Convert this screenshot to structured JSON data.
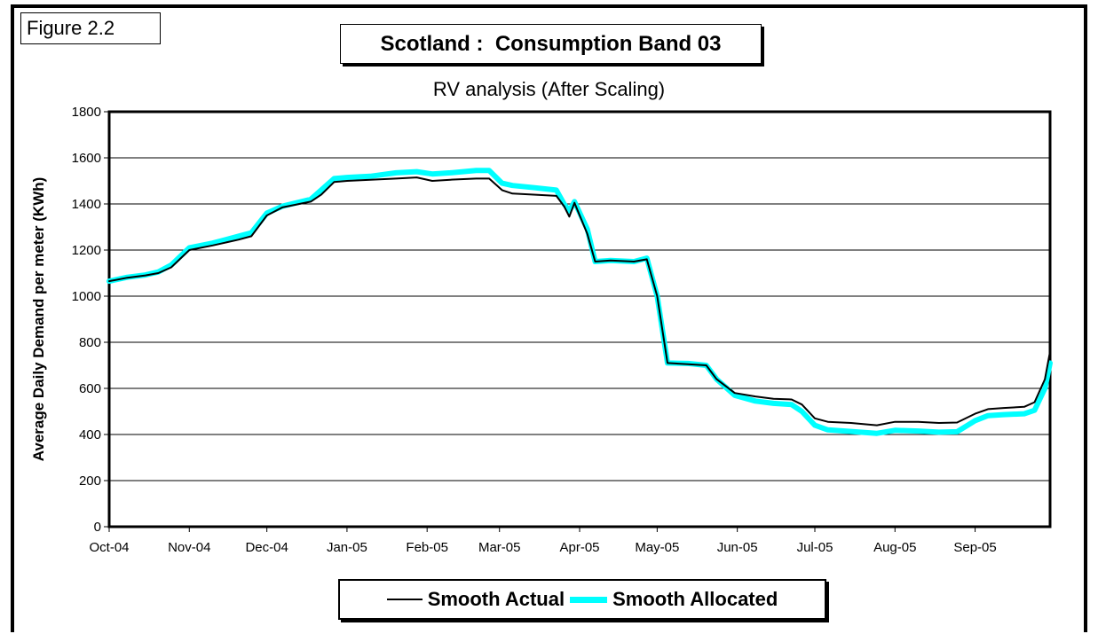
{
  "figure_label": "Figure 2.2",
  "title": "Scotland :  Consumption Band 03",
  "subtitle": "RV analysis (After Scaling)",
  "chart_data": {
    "type": "line",
    "ylabel": "Average Daily Demand per meter (KWh)",
    "xlabel": "",
    "ylim": [
      0,
      1800
    ],
    "yticks": [
      0,
      200,
      400,
      600,
      800,
      1000,
      1200,
      1400,
      1600,
      1800
    ],
    "xlim": [
      "2004-10-01",
      "2005-09-30"
    ],
    "x_tick_labels": [
      "Oct-04",
      "Nov-04",
      "Dec-04",
      "Jan-05",
      "Feb-05",
      "Mar-05",
      "Apr-05",
      "May-05",
      "Jun-05",
      "Jul-05",
      "Aug-05",
      "Sep-05"
    ],
    "x_tick_dates": [
      "2004-10-01",
      "2004-11-01",
      "2004-12-01",
      "2005-01-01",
      "2005-02-01",
      "2005-03-01",
      "2005-04-01",
      "2005-05-01",
      "2005-06-01",
      "2005-07-01",
      "2005-08-01",
      "2005-09-01"
    ],
    "grid": "horizontal",
    "legend_position": "bottom",
    "series": [
      {
        "name": "Smooth Actual",
        "color": "#000000",
        "points": [
          [
            "2004-10-01",
            1065
          ],
          [
            "2004-10-08",
            1080
          ],
          [
            "2004-10-15",
            1090
          ],
          [
            "2004-10-20",
            1100
          ],
          [
            "2004-10-25",
            1125
          ],
          [
            "2004-11-01",
            1200
          ],
          [
            "2004-11-10",
            1220
          ],
          [
            "2004-11-20",
            1245
          ],
          [
            "2004-11-25",
            1260
          ],
          [
            "2004-12-01",
            1350
          ],
          [
            "2004-12-07",
            1385
          ],
          [
            "2004-12-18",
            1410
          ],
          [
            "2004-12-22",
            1440
          ],
          [
            "2004-12-27",
            1495
          ],
          [
            "2005-01-01",
            1500
          ],
          [
            "2005-01-10",
            1505
          ],
          [
            "2005-01-20",
            1510
          ],
          [
            "2005-01-28",
            1515
          ],
          [
            "2005-02-03",
            1500
          ],
          [
            "2005-02-10",
            1505
          ],
          [
            "2005-02-20",
            1510
          ],
          [
            "2005-02-25",
            1510
          ],
          [
            "2005-03-02",
            1460
          ],
          [
            "2005-03-06",
            1445
          ],
          [
            "2005-03-15",
            1440
          ],
          [
            "2005-03-23",
            1435
          ],
          [
            "2005-03-26",
            1390
          ],
          [
            "2005-03-28",
            1345
          ],
          [
            "2005-03-30",
            1405
          ],
          [
            "2005-04-04",
            1270
          ],
          [
            "2005-04-07",
            1150
          ],
          [
            "2005-04-13",
            1155
          ],
          [
            "2005-04-22",
            1150
          ],
          [
            "2005-04-27",
            1160
          ],
          [
            "2005-05-01",
            1000
          ],
          [
            "2005-05-05",
            710
          ],
          [
            "2005-05-13",
            705
          ],
          [
            "2005-05-20",
            700
          ],
          [
            "2005-05-24",
            640
          ],
          [
            "2005-05-31",
            580
          ],
          [
            "2005-06-08",
            565
          ],
          [
            "2005-06-15",
            555
          ],
          [
            "2005-06-22",
            552
          ],
          [
            "2005-06-26",
            530
          ],
          [
            "2005-07-01",
            470
          ],
          [
            "2005-07-06",
            455
          ],
          [
            "2005-07-15",
            450
          ],
          [
            "2005-07-25",
            440
          ],
          [
            "2005-08-01",
            455
          ],
          [
            "2005-08-10",
            455
          ],
          [
            "2005-08-18",
            450
          ],
          [
            "2005-08-25",
            452
          ],
          [
            "2005-09-01",
            490
          ],
          [
            "2005-09-06",
            510
          ],
          [
            "2005-09-12",
            515
          ],
          [
            "2005-09-20",
            520
          ],
          [
            "2005-09-24",
            540
          ],
          [
            "2005-09-28",
            640
          ],
          [
            "2005-09-30",
            760
          ]
        ]
      },
      {
        "name": "Smooth Allocated",
        "color": "#00ffff",
        "points": [
          [
            "2004-10-01",
            1065
          ],
          [
            "2004-10-08",
            1082
          ],
          [
            "2004-10-15",
            1092
          ],
          [
            "2004-10-20",
            1105
          ],
          [
            "2004-10-25",
            1135
          ],
          [
            "2004-11-01",
            1210
          ],
          [
            "2004-11-10",
            1230
          ],
          [
            "2004-11-20",
            1260
          ],
          [
            "2004-11-25",
            1275
          ],
          [
            "2004-12-01",
            1360
          ],
          [
            "2004-12-07",
            1390
          ],
          [
            "2004-12-18",
            1420
          ],
          [
            "2004-12-22",
            1460
          ],
          [
            "2004-12-27",
            1510
          ],
          [
            "2005-01-01",
            1515
          ],
          [
            "2005-01-10",
            1520
          ],
          [
            "2005-01-20",
            1535
          ],
          [
            "2005-01-28",
            1540
          ],
          [
            "2005-02-03",
            1530
          ],
          [
            "2005-02-10",
            1535
          ],
          [
            "2005-02-20",
            1545
          ],
          [
            "2005-02-25",
            1545
          ],
          [
            "2005-03-02",
            1490
          ],
          [
            "2005-03-06",
            1480
          ],
          [
            "2005-03-15",
            1470
          ],
          [
            "2005-03-23",
            1460
          ],
          [
            "2005-03-26",
            1400
          ],
          [
            "2005-03-28",
            1370
          ],
          [
            "2005-03-30",
            1410
          ],
          [
            "2005-04-04",
            1290
          ],
          [
            "2005-04-07",
            1150
          ],
          [
            "2005-04-13",
            1155
          ],
          [
            "2005-04-22",
            1150
          ],
          [
            "2005-04-27",
            1165
          ],
          [
            "2005-05-01",
            1000
          ],
          [
            "2005-05-05",
            710
          ],
          [
            "2005-05-13",
            708
          ],
          [
            "2005-05-20",
            700
          ],
          [
            "2005-05-24",
            640
          ],
          [
            "2005-05-31",
            570
          ],
          [
            "2005-06-08",
            545
          ],
          [
            "2005-06-15",
            535
          ],
          [
            "2005-06-22",
            530
          ],
          [
            "2005-06-26",
            500
          ],
          [
            "2005-07-01",
            440
          ],
          [
            "2005-07-06",
            420
          ],
          [
            "2005-07-15",
            413
          ],
          [
            "2005-07-25",
            405
          ],
          [
            "2005-08-01",
            418
          ],
          [
            "2005-08-10",
            415
          ],
          [
            "2005-08-18",
            410
          ],
          [
            "2005-08-25",
            412
          ],
          [
            "2005-09-01",
            460
          ],
          [
            "2005-09-06",
            482
          ],
          [
            "2005-09-12",
            486
          ],
          [
            "2005-09-20",
            490
          ],
          [
            "2005-09-24",
            505
          ],
          [
            "2005-09-28",
            600
          ],
          [
            "2005-09-30",
            710
          ]
        ]
      }
    ]
  }
}
